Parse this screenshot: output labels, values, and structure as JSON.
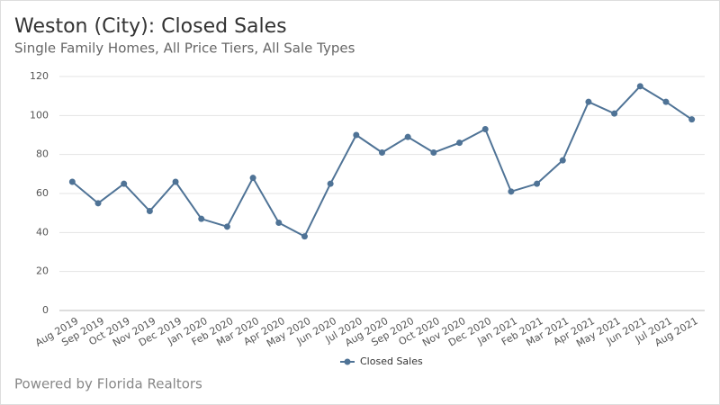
{
  "chart_data": {
    "type": "line",
    "title": "Weston (City): Closed Sales",
    "subtitle": "Single Family Homes, All Price Tiers, All Sale Types",
    "footer": "Powered by Florida Realtors",
    "categories": [
      "Aug 2019",
      "Sep 2019",
      "Oct 2019",
      "Nov 2019",
      "Dec 2019",
      "Jan 2020",
      "Feb 2020",
      "Mar 2020",
      "Apr 2020",
      "May 2020",
      "Jun 2020",
      "Jul 2020",
      "Aug 2020",
      "Sep 2020",
      "Oct 2020",
      "Nov 2020",
      "Dec 2020",
      "Jan 2021",
      "Feb 2021",
      "Mar 2021",
      "Apr 2021",
      "May 2021",
      "Jun 2021",
      "Jul 2021",
      "Aug 2021"
    ],
    "series": [
      {
        "name": "Closed Sales",
        "color": "#4f7396",
        "values": [
          66,
          55,
          65,
          51,
          66,
          47,
          43,
          68,
          45,
          38,
          65,
          90,
          81,
          89,
          81,
          86,
          93,
          61,
          65,
          77,
          107,
          101,
          115,
          107,
          98
        ]
      }
    ],
    "ylim": [
      0,
      120
    ],
    "yticks": [
      0,
      20,
      40,
      60,
      80,
      100,
      120
    ],
    "grid": true,
    "legend": "bottom"
  }
}
